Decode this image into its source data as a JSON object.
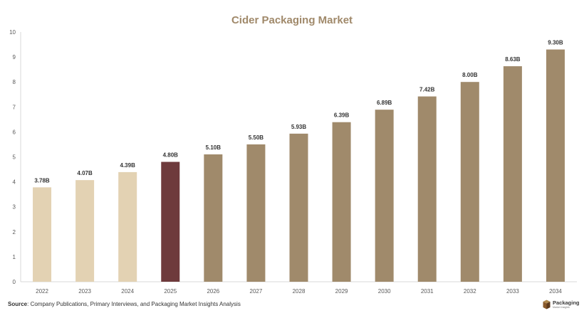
{
  "chart_data": {
    "type": "bar",
    "title": "Cider Packaging Market",
    "categories": [
      "2022",
      "2023",
      "2024",
      "2025",
      "2026",
      "2027",
      "2028",
      "2029",
      "2030",
      "2031",
      "2032",
      "2033",
      "2034"
    ],
    "values": [
      3.78,
      4.07,
      4.39,
      4.8,
      5.1,
      5.5,
      5.93,
      6.39,
      6.89,
      7.42,
      8.0,
      8.63,
      9.3
    ],
    "data_labels": [
      "3.78B",
      "4.07B",
      "4.39B",
      "4.80B",
      "5.10B",
      "5.50B",
      "5.93B",
      "6.39B",
      "6.89B",
      "7.42B",
      "8.00B",
      "8.63B",
      "9.30B"
    ],
    "bar_colors": [
      "#e3d2b3",
      "#e3d2b3",
      "#e3d2b3",
      "#6e3a3c",
      "#a08a6b",
      "#a08a6b",
      "#a08a6b",
      "#a08a6b",
      "#a08a6b",
      "#a08a6b",
      "#a08a6b",
      "#a08a6b",
      "#a08a6b"
    ],
    "ylim": [
      0,
      10
    ],
    "yticks": [
      0,
      1,
      2,
      3,
      4,
      5,
      6,
      7,
      8,
      9,
      10
    ],
    "xlabel": "",
    "ylabel": "",
    "grid": false,
    "legend": "none"
  },
  "source": {
    "label": "Source",
    "text": ": Company Publications, Primary Interviews, and Packaging Market Insights Analysis"
  },
  "brand": {
    "name": "Packaging",
    "tagline": "Market Insights"
  },
  "colors": {
    "title": "#a0896a",
    "axis": "#d9d9d9",
    "tick_text": "#595959",
    "label_text": "#333333"
  }
}
